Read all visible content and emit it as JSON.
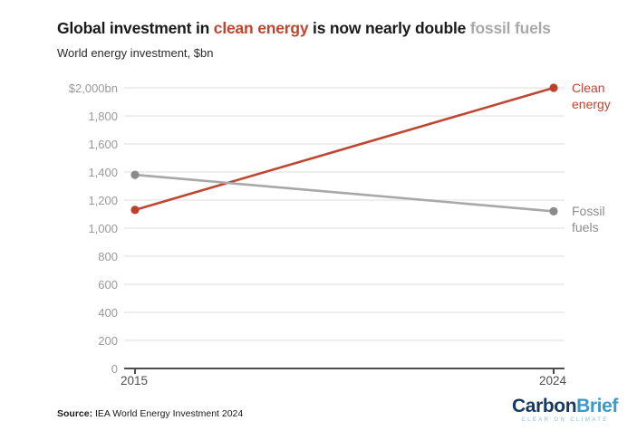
{
  "header": {
    "title_parts": [
      {
        "text": "Global investment in ",
        "color": "#1a1a1a"
      },
      {
        "text": "clean energy",
        "color": "#c0452f"
      },
      {
        "text": " is now nearly double ",
        "color": "#1a1a1a"
      },
      {
        "text": "fossil fuels",
        "color": "#a9a9a9"
      }
    ],
    "subtitle": "World energy investment, $bn"
  },
  "chart_data": {
    "type": "line",
    "title": "Global investment in clean energy is now nearly double fossil fuels",
    "subtitle": "World energy investment, $bn",
    "x": [
      2015,
      2024
    ],
    "xlabel": "",
    "ylabel": "World energy investment, $bn",
    "ylim": [
      0,
      2000
    ],
    "grid": "horizontal",
    "legend_position": "right-end-labels",
    "series": [
      {
        "name": "Clean energy",
        "name_lines": [
          "Clean",
          "energy"
        ],
        "values": [
          1130,
          2000
        ],
        "line_color": "#bf4732",
        "dot_color": "#bf3f2b",
        "label_color": "#c0452f"
      },
      {
        "name": "Fossil fuels",
        "name_lines": [
          "Fossil",
          "fuels"
        ],
        "values": [
          1380,
          1120
        ],
        "line_color": "#a8a8a8",
        "dot_color": "#8a8a8a",
        "label_color": "#8c8c8c"
      }
    ],
    "yticks": [
      {
        "v": 0,
        "label": "0"
      },
      {
        "v": 200,
        "label": "200"
      },
      {
        "v": 400,
        "label": "400"
      },
      {
        "v": 600,
        "label": "600"
      },
      {
        "v": 800,
        "label": "800"
      },
      {
        "v": 1000,
        "label": "1,000"
      },
      {
        "v": 1200,
        "label": "1,200"
      },
      {
        "v": 1400,
        "label": "1,400"
      },
      {
        "v": 1600,
        "label": "1,600"
      },
      {
        "v": 1800,
        "label": "1,800"
      },
      {
        "v": 2000,
        "label": "$2,000bn"
      }
    ],
    "xticks": [
      {
        "x": 2015,
        "label": "2015"
      },
      {
        "x": 2024,
        "label": "2024"
      }
    ]
  },
  "footer": {
    "source_label": "Source:",
    "source_text": " IEA World Energy Investment 2024",
    "logo": {
      "part1": "Carbon",
      "part2": "Brief",
      "tagline": "CLEAR ON CLIMATE",
      "color1": "#16395d",
      "color2": "#3e97c9",
      "tagline_color": "#85bdda"
    }
  }
}
